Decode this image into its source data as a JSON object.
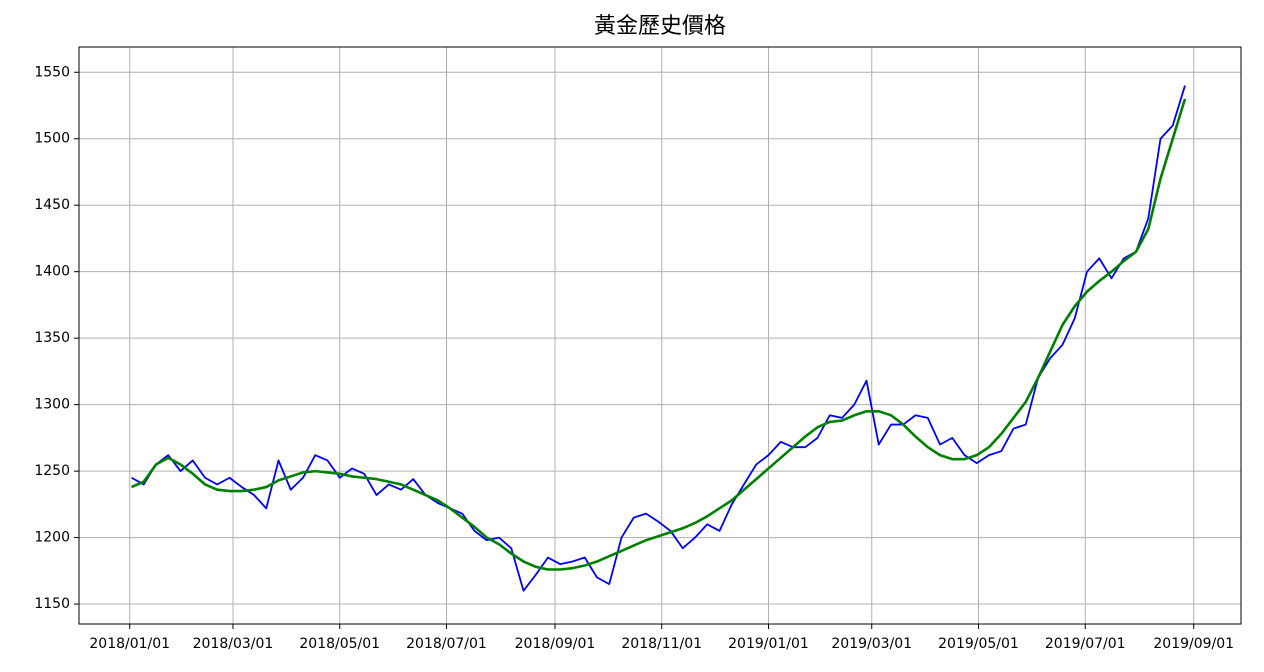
{
  "chart_data": {
    "type": "line",
    "title": "黃金歷史價格",
    "x": [
      "2018-01-02",
      "2018-01-09",
      "2018-01-16",
      "2018-01-23",
      "2018-01-30",
      "2018-02-06",
      "2018-02-13",
      "2018-02-20",
      "2018-02-27",
      "2018-03-06",
      "2018-03-13",
      "2018-03-20",
      "2018-03-27",
      "2018-04-03",
      "2018-04-10",
      "2018-04-17",
      "2018-04-24",
      "2018-05-01",
      "2018-05-08",
      "2018-05-15",
      "2018-05-22",
      "2018-05-29",
      "2018-06-05",
      "2018-06-12",
      "2018-06-19",
      "2018-06-26",
      "2018-07-03",
      "2018-07-10",
      "2018-07-17",
      "2018-07-24",
      "2018-07-31",
      "2018-08-07",
      "2018-08-14",
      "2018-08-21",
      "2018-08-28",
      "2018-09-04",
      "2018-09-11",
      "2018-09-18",
      "2018-09-25",
      "2018-10-02",
      "2018-10-09",
      "2018-10-16",
      "2018-10-23",
      "2018-10-30",
      "2018-11-06",
      "2018-11-13",
      "2018-11-20",
      "2018-11-27",
      "2018-12-04",
      "2018-12-11",
      "2018-12-18",
      "2018-12-25",
      "2019-01-01",
      "2019-01-08",
      "2019-01-15",
      "2019-01-22",
      "2019-01-29",
      "2019-02-05",
      "2019-02-12",
      "2019-02-19",
      "2019-02-26",
      "2019-03-05",
      "2019-03-12",
      "2019-03-19",
      "2019-03-26",
      "2019-04-02",
      "2019-04-09",
      "2019-04-16",
      "2019-04-23",
      "2019-04-30",
      "2019-05-07",
      "2019-05-14",
      "2019-05-21",
      "2019-05-28",
      "2019-06-04",
      "2019-06-11",
      "2019-06-18",
      "2019-06-25",
      "2019-07-02",
      "2019-07-09",
      "2019-07-16",
      "2019-07-23",
      "2019-07-30",
      "2019-08-06",
      "2019-08-13",
      "2019-08-20",
      "2019-08-27"
    ],
    "series": [
      {
        "color": "#0000ff",
        "width": 1.8,
        "values": [
          1245,
          1240,
          1255,
          1262,
          1250,
          1258,
          1245,
          1240,
          1245,
          1238,
          1232,
          1222,
          1258,
          1236,
          1245,
          1262,
          1258,
          1245,
          1252,
          1248,
          1232,
          1240,
          1236,
          1244,
          1232,
          1226,
          1222,
          1218,
          1205,
          1198,
          1200,
          1192,
          1160,
          1172,
          1185,
          1180,
          1182,
          1185,
          1170,
          1165,
          1200,
          1215,
          1218,
          1212,
          1205,
          1192,
          1200,
          1210,
          1205,
          1225,
          1240,
          1255,
          1262,
          1272,
          1268,
          1268,
          1275,
          1292,
          1290,
          1300,
          1318,
          1270,
          1285,
          1285,
          1292,
          1290,
          1270,
          1275,
          1262,
          1256,
          1262,
          1265,
          1282,
          1285,
          1320,
          1335,
          1345,
          1365,
          1400,
          1410,
          1395,
          1410,
          1415,
          1440,
          1500,
          1510,
          1540
        ]
      },
      {
        "color": "#008000",
        "width": 2.6,
        "values": [
          1238,
          1242,
          1255,
          1260,
          1255,
          1248,
          1240,
          1236,
          1235,
          1235,
          1236,
          1238,
          1243,
          1246,
          1249,
          1250,
          1249,
          1248,
          1246,
          1245,
          1244,
          1242,
          1240,
          1236,
          1232,
          1228,
          1222,
          1215,
          1208,
          1200,
          1195,
          1188,
          1182,
          1178,
          1176,
          1176,
          1177,
          1179,
          1182,
          1186,
          1190,
          1194,
          1198,
          1201,
          1204,
          1207,
          1211,
          1216,
          1222,
          1228,
          1236,
          1244,
          1252,
          1260,
          1268,
          1276,
          1283,
          1287,
          1288,
          1292,
          1295,
          1295,
          1292,
          1285,
          1276,
          1268,
          1262,
          1259,
          1259,
          1262,
          1268,
          1278,
          1290,
          1302,
          1320,
          1340,
          1360,
          1374,
          1385,
          1393,
          1400,
          1408,
          1415,
          1432,
          1470,
          1500,
          1530
        ]
      }
    ],
    "xlim": [
      "2017-12-03",
      "2019-09-28"
    ],
    "xticks": [
      "2018/01/01",
      "2018/03/01",
      "2018/05/01",
      "2018/07/01",
      "2018/09/01",
      "2018/11/01",
      "2019/01/01",
      "2019/03/01",
      "2019/05/01",
      "2019/07/01",
      "2019/09/01"
    ],
    "ylim": [
      1135,
      1569
    ],
    "yticks": [
      1150,
      1200,
      1250,
      1300,
      1350,
      1400,
      1450,
      1500,
      1550
    ],
    "grid": true
  }
}
